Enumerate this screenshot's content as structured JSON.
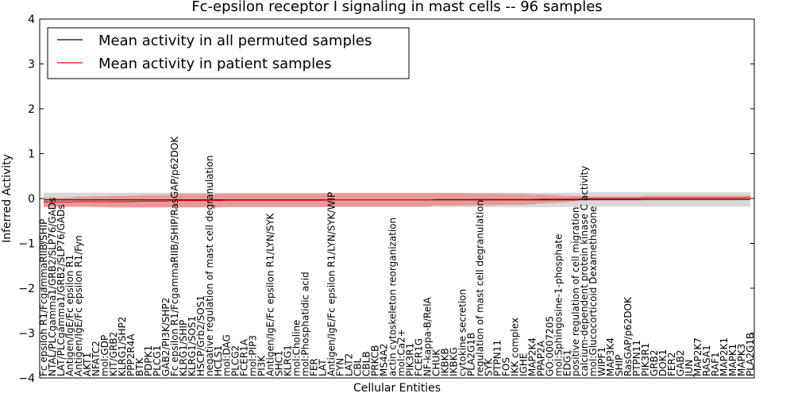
{
  "chart_data": {
    "type": "line",
    "title": "Fc-epsilon receptor I signaling in mast cells -- 96 samples",
    "xlabel": "Cellular Entities",
    "ylabel": "Inferred Activity",
    "ylim": [
      -4,
      4
    ],
    "yticks": [
      "4",
      "3",
      "2",
      "1",
      "0",
      "−1",
      "−2",
      "−3",
      "−4"
    ],
    "legend_position": "top-left",
    "colors": {
      "permuted": "#000000",
      "patient": "#ff0000",
      "patient_band": "#f08080",
      "permuted_band": "#c8c8c8"
    },
    "categories": [
      "Fc epsilon R1/FcgammaRIIB/SHIP",
      "NTAL/PLCgamma1/GRB2/SLP76/GADs",
      "LAT/PLCgamma1/GRB2/SLP76/GADs",
      "Antigen/IgE/Fc epsilon R1",
      "Antigen/IgE/Fc epsilon R1/Fyn",
      "AKT1",
      "NFATC2",
      "mol:GDP",
      "KIT/GRB2",
      "KLRG1/SHP2",
      "PPP2R4A",
      "BTK",
      "PDPK1",
      "PLCG1",
      "GAB2/PI3K/SHP2",
      "Fc epsilon R1/FcgammaRIIB/SHIP/RasGAP/p62DOK",
      "KLRG1/SHIP",
      "KLRG1/SOS1",
      "HSCP/Grb2/SOS1",
      "negative regulation of mast cell degranulation",
      "HCLS1",
      "mol:DAG",
      "PLCG2",
      "FCER1A",
      "mol:PIP3",
      "PI3K",
      "Antigen/IgE/Fc epsilon R1/LYN/SYK",
      "SHC1",
      "KLRG1",
      "mol:Choline",
      "mol:Phosphatidic acid",
      "FER",
      "LAT",
      "Antigen/IgE/Fc epsilon R1/LYN/SYK/WIP",
      "FYN",
      "LAT2",
      "CBL",
      "CBLB",
      "PRKCB",
      "MS4A2",
      "actin cytoskeleton reorganization",
      "mol:Ca2+",
      "PIK3R1",
      "FCER1G",
      "NF-kappa-B/RelA",
      "CHUK",
      "IKBKB",
      "IKBKG",
      "cytokine secretion",
      "PLA2G1B",
      "regulation of mast cell degranulation",
      "SYK",
      "PTPN11",
      "FOS",
      "IKK complex",
      "IGHE",
      "MAP2K4",
      "PPAP2A",
      "GO:0007205",
      "mol:Sphingosine-1-phosphate",
      "EDG1",
      "positive regulation of cell migration",
      "calcium-dependent protein kinase C activity",
      "mol:Glucocorticoid Dexamethasone",
      "WIPF1",
      "MAP3K4",
      "SHIP",
      "RasGAP/p62DOK",
      "PTPN11",
      "PIK3R1",
      "GRB2",
      "DOK1",
      "FER2",
      "GAB2",
      "JUN",
      "MAP2K7",
      "RASA1",
      "RAF1",
      "MAP2K1",
      "MAPK1",
      "MAPK3",
      "PLA2G1B"
    ],
    "series": [
      {
        "name": "Mean activity in all permuted samples",
        "mean": [
          -0.03,
          -0.03,
          -0.03,
          -0.03,
          -0.03,
          -0.03,
          -0.03,
          -0.03,
          -0.03,
          -0.03,
          -0.03,
          -0.03,
          -0.03,
          -0.03,
          -0.03,
          -0.03,
          -0.03,
          -0.03,
          -0.03,
          -0.03,
          -0.03,
          -0.03,
          -0.03,
          -0.03,
          -0.03,
          -0.03,
          -0.03,
          -0.03,
          -0.03,
          -0.03,
          -0.03,
          -0.03,
          -0.03,
          -0.03,
          -0.03,
          -0.03,
          -0.03,
          -0.03,
          -0.03,
          -0.03,
          -0.03,
          -0.03,
          -0.03,
          -0.03,
          -0.03,
          -0.03,
          -0.03,
          -0.03,
          -0.03,
          -0.03,
          -0.03,
          -0.03,
          -0.03,
          -0.03,
          -0.03,
          -0.03,
          -0.03,
          -0.03,
          -0.03,
          -0.03,
          -0.03,
          -0.03,
          -0.02,
          -0.02,
          -0.02,
          -0.02,
          -0.02,
          -0.02,
          -0.02,
          -0.02,
          -0.02,
          -0.02,
          -0.02,
          -0.02,
          -0.02,
          -0.02,
          -0.02,
          -0.02,
          -0.02,
          -0.02,
          -0.02,
          -0.02
        ],
        "band": 0.16
      },
      {
        "name": "Mean activity in patient samples",
        "mean": [
          -0.08,
          -0.08,
          -0.08,
          -0.08,
          -0.07,
          -0.07,
          -0.07,
          -0.07,
          -0.07,
          -0.07,
          -0.07,
          -0.06,
          -0.06,
          -0.06,
          -0.06,
          -0.05,
          -0.05,
          -0.05,
          -0.05,
          -0.05,
          -0.05,
          -0.04,
          -0.04,
          -0.04,
          -0.04,
          -0.04,
          -0.04,
          -0.04,
          -0.04,
          -0.04,
          -0.04,
          -0.04,
          -0.04,
          -0.03,
          -0.03,
          -0.03,
          -0.03,
          -0.03,
          -0.03,
          -0.03,
          -0.03,
          -0.03,
          -0.03,
          -0.03,
          -0.03,
          -0.02,
          -0.02,
          -0.02,
          -0.02,
          -0.02,
          -0.02,
          -0.02,
          -0.02,
          -0.02,
          -0.02,
          -0.02,
          -0.02,
          -0.01,
          -0.01,
          -0.01,
          -0.01,
          0.0,
          0.0,
          0.0,
          0.0,
          0.0,
          0.0,
          0.0,
          0.0,
          0.01,
          0.01,
          0.01,
          0.01,
          0.01,
          0.01,
          0.01,
          0.01,
          0.01,
          0.01,
          0.01,
          0.01,
          0.02
        ],
        "band": [
          0.1,
          0.1,
          0.1,
          0.1,
          0.11,
          0.11,
          0.12,
          0.12,
          0.13,
          0.13,
          0.13,
          0.14,
          0.14,
          0.14,
          0.14,
          0.15,
          0.15,
          0.15,
          0.15,
          0.15,
          0.15,
          0.15,
          0.15,
          0.15,
          0.15,
          0.15,
          0.15,
          0.15,
          0.15,
          0.15,
          0.15,
          0.15,
          0.15,
          0.15,
          0.15,
          0.15,
          0.15,
          0.15,
          0.15,
          0.15,
          0.15,
          0.15,
          0.15,
          0.15,
          0.15,
          0.14,
          0.14,
          0.14,
          0.14,
          0.13,
          0.13,
          0.13,
          0.13,
          0.12,
          0.12,
          0.12,
          0.11,
          0.1,
          0.09,
          0.08,
          0.07,
          0.06,
          0.05,
          0.05,
          0.05,
          0.05,
          0.05,
          0.05,
          0.05,
          0.05,
          0.05,
          0.05,
          0.05,
          0.05,
          0.05,
          0.05,
          0.05,
          0.05,
          0.05,
          0.05,
          0.05,
          0.05
        ]
      }
    ]
  }
}
